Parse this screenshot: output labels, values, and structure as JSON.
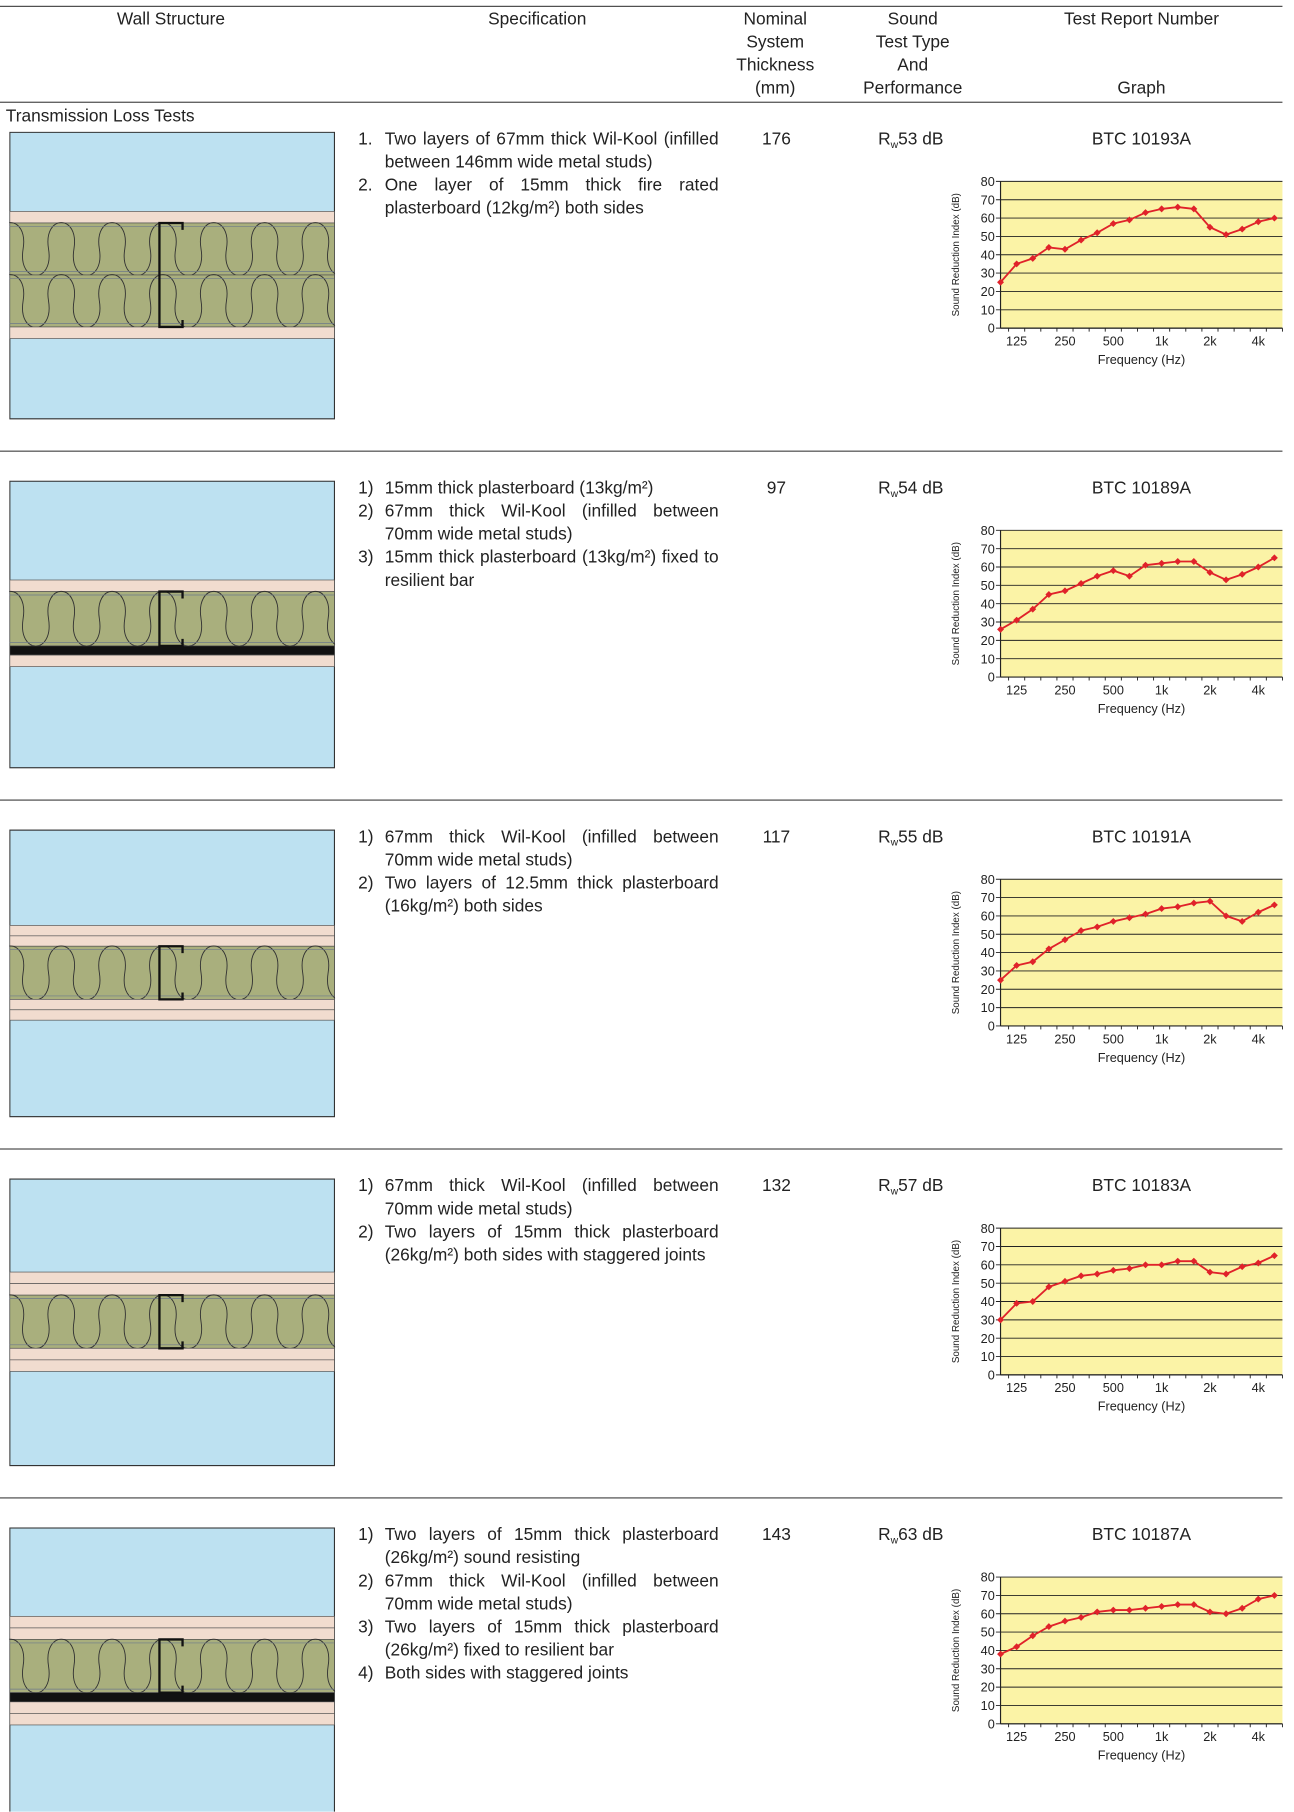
{
  "header": {
    "wall": "Wall Structure",
    "spec": "Specification",
    "thickness": [
      "Nominal",
      "System",
      "Thickness",
      "(mm)"
    ],
    "performance": [
      "Sound",
      "Test Type",
      "And",
      "Performance"
    ],
    "report": "Test Report Number",
    "graph": "Graph"
  },
  "section": "Transmission Loss Tests",
  "rows": [
    {
      "spec": [
        {
          "marker": "1.",
          "text": "Two layers of 67mm thick Wil-Kool (infilled between 146mm wide metal studs)"
        },
        {
          "marker": "2.",
          "text": "One layer of 15mm thick fire rated plasterboard (12kg/m²) both sides"
        }
      ],
      "thickness": 176,
      "performance": {
        "symbol": "R",
        "subscript": "w",
        "value": "53 dB"
      },
      "report": "BTC 10193A"
    },
    {
      "spec": [
        {
          "marker": "1)",
          "text": "15mm thick plasterboard (13kg/m²)"
        },
        {
          "marker": "2)",
          "text": "67mm thick Wil-Kool (infilled between 70mm wide metal studs)"
        },
        {
          "marker": "3)",
          "text": "15mm thick plasterboard (13kg/m²) fixed to resilient bar"
        }
      ],
      "thickness": 97,
      "performance": {
        "symbol": "R",
        "subscript": "w",
        "value": "54 dB"
      },
      "report": "BTC 10189A"
    },
    {
      "spec": [
        {
          "marker": "1)",
          "text": "67mm thick Wil-Kool (infilled between 70mm wide metal studs)"
        },
        {
          "marker": "2)",
          "text": "Two layers of 12.5mm thick plasterboard (16kg/m²) both sides"
        }
      ],
      "thickness": 117,
      "performance": {
        "symbol": "R",
        "subscript": "w",
        "value": "55 dB"
      },
      "report": "BTC 10191A"
    },
    {
      "spec": [
        {
          "marker": "1)",
          "text": "67mm thick Wil-Kool (infilled between 70mm wide metal studs)"
        },
        {
          "marker": "2)",
          "text": "Two layers of 15mm thick plasterboard (26kg/m²) both sides with staggered joints"
        }
      ],
      "thickness": 132,
      "performance": {
        "symbol": "R",
        "subscript": "w",
        "value": "57 dB"
      },
      "report": "BTC 10183A"
    },
    {
      "spec": [
        {
          "marker": "1)",
          "text": "Two layers of 15mm thick plasterboard (26kg/m²) sound resisting"
        },
        {
          "marker": "2)",
          "text": "67mm thick Wil-Kool (infilled between 70mm wide metal studs)"
        },
        {
          "marker": "3)",
          "text": "Two layers of 15mm thick plasterboard (26kg/m²) fixed to resilient bar"
        },
        {
          "marker": "4)",
          "text": "Both sides with staggered joints"
        }
      ],
      "thickness": 143,
      "performance": {
        "symbol": "R",
        "subscript": "w",
        "value": "63 dB"
      },
      "report": "BTC 10187A"
    }
  ],
  "chart_data": [
    {
      "type": "line",
      "y_label": "Sound Reduction Index (dB)",
      "x_label": "Frequency (Hz)",
      "categories": [
        null,
        "125",
        null,
        null,
        "250",
        null,
        null,
        "500",
        null,
        null,
        "1k",
        null,
        null,
        "2k",
        null,
        null,
        "4k",
        null
      ],
      "values": [
        25,
        35,
        38,
        44,
        43,
        48,
        52,
        57,
        59,
        63,
        65,
        66,
        65,
        55,
        51,
        54,
        58,
        60
      ],
      "color": "#e0222a",
      "background": "#fbf3a6",
      "ylim": [
        0,
        80
      ],
      "yticks": [
        0,
        10,
        20,
        30,
        40,
        50,
        60,
        70,
        80
      ],
      "grid": true
    },
    {
      "type": "line",
      "y_label": "Sound Reduction Index (dB)",
      "x_label": "Frequency (Hz)",
      "categories": [
        null,
        "125",
        null,
        null,
        "250",
        null,
        null,
        "500",
        null,
        null,
        "1k",
        null,
        null,
        "2k",
        null,
        null,
        "4k",
        null
      ],
      "values": [
        26,
        31,
        37,
        45,
        47,
        51,
        55,
        58,
        55,
        61,
        62,
        63,
        63,
        57,
        53,
        56,
        60,
        65
      ],
      "color": "#e0222a",
      "background": "#fbf3a6",
      "ylim": [
        0,
        80
      ],
      "yticks": [
        0,
        10,
        20,
        30,
        40,
        50,
        60,
        70,
        80
      ],
      "grid": true
    },
    {
      "type": "line",
      "y_label": "Sound Reduction Index (dB)",
      "x_label": "Frequency (Hz)",
      "categories": [
        null,
        "125",
        null,
        null,
        "250",
        null,
        null,
        "500",
        null,
        null,
        "1k",
        null,
        null,
        "2k",
        null,
        null,
        "4k",
        null
      ],
      "values": [
        25,
        33,
        35,
        42,
        47,
        52,
        54,
        57,
        59,
        61,
        64,
        65,
        67,
        68,
        60,
        57,
        62,
        66
      ],
      "color": "#e0222a",
      "background": "#fbf3a6",
      "ylim": [
        0,
        80
      ],
      "yticks": [
        0,
        10,
        20,
        30,
        40,
        50,
        60,
        70,
        80
      ],
      "grid": true
    },
    {
      "type": "line",
      "y_label": "Sound Reduction Index (dB)",
      "x_label": "Frequency (Hz)",
      "categories": [
        null,
        "125",
        null,
        null,
        "250",
        null,
        null,
        "500",
        null,
        null,
        "1k",
        null,
        null,
        "2k",
        null,
        null,
        "4k",
        null
      ],
      "values": [
        30,
        39,
        40,
        48,
        51,
        54,
        55,
        57,
        58,
        60,
        60,
        62,
        62,
        56,
        55,
        59,
        61,
        65
      ],
      "color": "#e0222a",
      "background": "#fbf3a6",
      "ylim": [
        0,
        80
      ],
      "yticks": [
        0,
        10,
        20,
        30,
        40,
        50,
        60,
        70,
        80
      ],
      "grid": true
    },
    {
      "type": "line",
      "y_label": "Sound Reduction Index (dB)",
      "x_label": "Frequency (Hz)",
      "categories": [
        null,
        "125",
        null,
        null,
        "250",
        null,
        null,
        "500",
        null,
        null,
        "1k",
        null,
        null,
        "2k",
        null,
        null,
        "4k",
        null
      ],
      "values": [
        38,
        42,
        48,
        53,
        56,
        58,
        61,
        62,
        62,
        63,
        64,
        65,
        65,
        61,
        60,
        63,
        68,
        70
      ],
      "color": "#e0222a",
      "background": "#fbf3a6",
      "ylim": [
        0,
        80
      ],
      "yticks": [
        0,
        10,
        20,
        30,
        40,
        50,
        60,
        70,
        80
      ],
      "grid": true
    }
  ]
}
